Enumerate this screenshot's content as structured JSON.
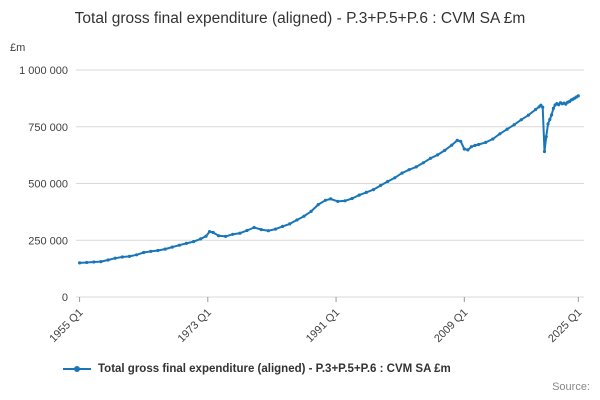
{
  "title": "Total gross final expenditure (aligned) - P.3+P.5+P.6 : CVM SA £m",
  "y_unit": "£m",
  "source_label": "Source:",
  "legend": {
    "label": "Total gross final expenditure (aligned) - P.3+P.5+P.6 : CVM SA £m"
  },
  "colors": {
    "line": "#1976b8",
    "grid": "#d9d9d9",
    "tick": "#999999",
    "text": "#414042"
  },
  "chart_data": {
    "type": "line",
    "title": "Total gross final expenditure (aligned) - P.3+P.5+P.6 : CVM SA £m",
    "xlabel": "",
    "ylabel": "£m",
    "ylim": [
      0,
      1000000
    ],
    "xlim": [
      1954.5,
      2025.8
    ],
    "grid": "horizontal",
    "legend_position": "bottom-left",
    "yticks": [
      {
        "value": 0,
        "label": "0"
      },
      {
        "value": 250000,
        "label": "250 000"
      },
      {
        "value": 500000,
        "label": "500 000"
      },
      {
        "value": 750000,
        "label": "750 000"
      },
      {
        "value": 1000000,
        "label": "1 000 000"
      }
    ],
    "xticks": [
      {
        "value": 1955,
        "label": "1955 Q1"
      },
      {
        "value": 1973,
        "label": "1973 Q1"
      },
      {
        "value": 1991,
        "label": "1991 Q1"
      },
      {
        "value": 2009,
        "label": "2009 Q1"
      },
      {
        "value": 2025,
        "label": "2025 Q1"
      }
    ],
    "series": [
      {
        "name": "Total gross final expenditure (aligned) - P.3+P.5+P.6 : CVM SA £m",
        "x": [
          1955,
          1956,
          1957,
          1958,
          1959,
          1960,
          1961,
          1962,
          1963,
          1964,
          1965,
          1966,
          1967,
          1968,
          1969,
          1970,
          1971,
          1972,
          1972.75,
          1973.25,
          1973.75,
          1974.5,
          1975.5,
          1976.5,
          1977.5,
          1978.5,
          1979.5,
          1980.5,
          1981.5,
          1982.5,
          1983.5,
          1984.5,
          1985.5,
          1986.5,
          1987.5,
          1988.5,
          1989.5,
          1990.25,
          1991.25,
          1992.25,
          1993.25,
          1994.25,
          1995.25,
          1996.25,
          1997.25,
          1998.25,
          1999.25,
          2000.25,
          2001.25,
          2002.25,
          2003.25,
          2004.25,
          2005.25,
          2006.25,
          2007.25,
          2008,
          2008.5,
          2009,
          2009.5,
          2010,
          2010.5,
          2011,
          2012,
          2013,
          2014,
          2015,
          2016,
          2017,
          2018,
          2019,
          2019.5,
          2019.75,
          2020,
          2020.25,
          2020.5,
          2020.75,
          2021,
          2021.25,
          2021.5,
          2021.75,
          2022,
          2022.25,
          2022.5,
          2022.75,
          2023,
          2023.25,
          2023.5,
          2023.75,
          2024,
          2024.25,
          2024.5,
          2024.75,
          2025
        ],
        "values": [
          150000,
          152000,
          154000,
          156000,
          163000,
          171000,
          176000,
          179000,
          186000,
          196000,
          201000,
          205000,
          211000,
          220000,
          228000,
          236000,
          244000,
          256000,
          268000,
          288000,
          284000,
          270000,
          267000,
          276000,
          281000,
          293000,
          306000,
          297000,
          292000,
          299000,
          311000,
          322000,
          339000,
          356000,
          377000,
          407000,
          426000,
          432000,
          421000,
          424000,
          434000,
          449000,
          461000,
          473000,
          491000,
          509000,
          525000,
          546000,
          561000,
          573000,
          591000,
          611000,
          626000,
          646000,
          669000,
          690000,
          686000,
          652000,
          648000,
          662000,
          668000,
          672000,
          681000,
          696000,
          719000,
          739000,
          759000,
          781000,
          801000,
          826000,
          838000,
          845000,
          836000,
          641000,
          706000,
          762000,
          782000,
          802000,
          831000,
          846000,
          852000,
          847000,
          856000,
          851000,
          854000,
          850000,
          858000,
          861000,
          868000,
          872000,
          876000,
          881000,
          886000
        ]
      }
    ]
  }
}
